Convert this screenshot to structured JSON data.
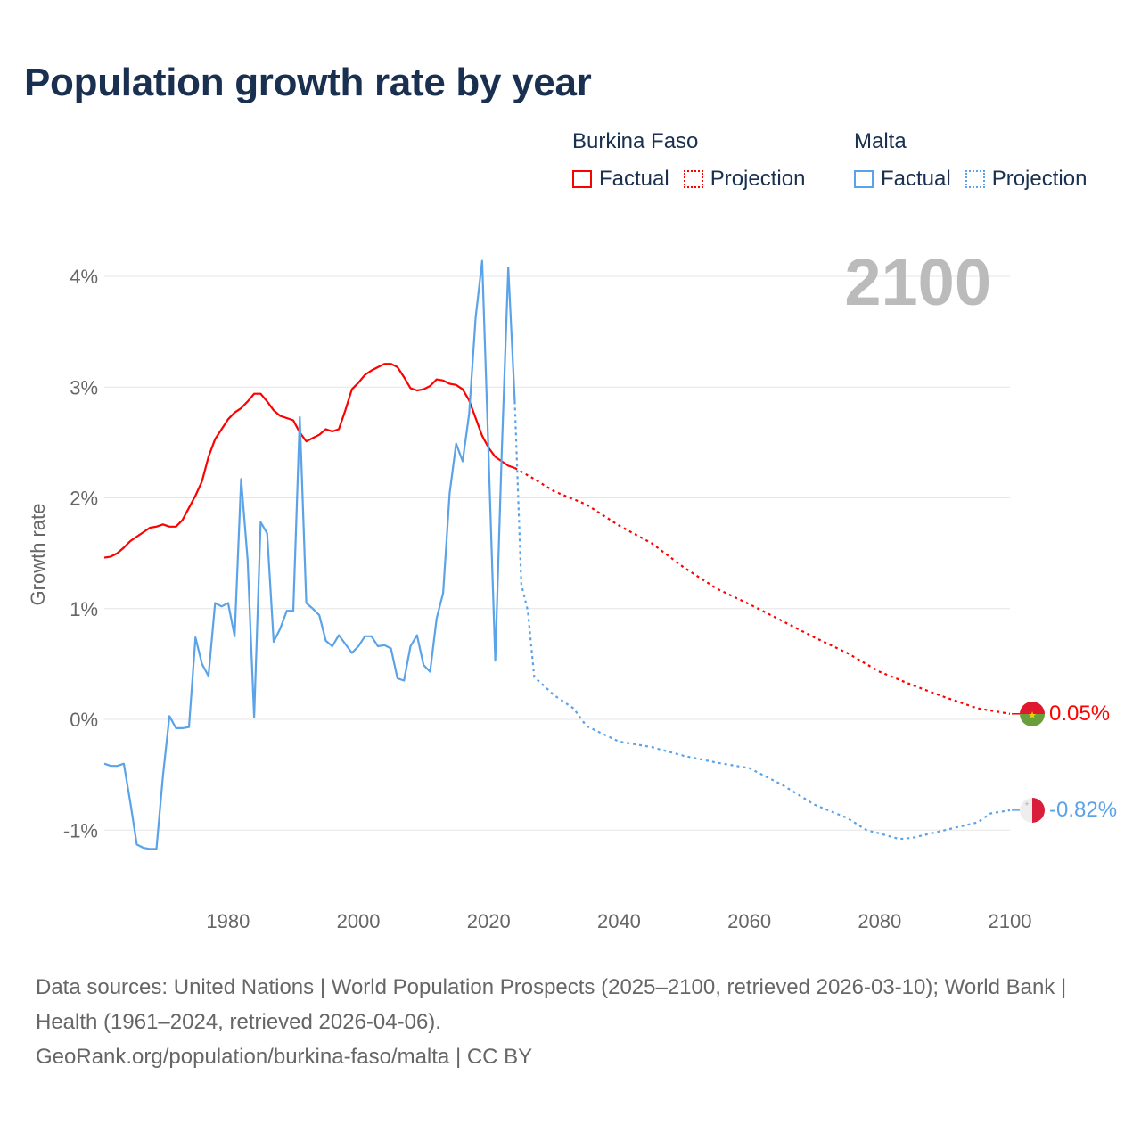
{
  "title": "Population growth rate by year",
  "legend": {
    "groups": [
      {
        "name": "Burkina Faso",
        "factual": "Factual",
        "projection": "Projection",
        "color": "#ff0000"
      },
      {
        "name": "Malta",
        "factual": "Factual",
        "projection": "Projection",
        "color": "#5ba3e8"
      }
    ]
  },
  "year_label": "2100",
  "footer": {
    "sources": "Data sources: United Nations | World Population Prospects (2025–2100, retrieved 2026-03-10); World Bank | Health (1961–2024, retrieved 2026-04-06).",
    "link": "GeoRank.org/population/burkina-faso/malta | CC BY"
  },
  "chart_data": {
    "type": "line",
    "title": "Population growth rate by year",
    "xlabel": "",
    "ylabel": "Growth rate",
    "xlim": [
      1961,
      2100
    ],
    "ylim": [
      -1.4,
      4.2
    ],
    "grid": true,
    "x_ticks": [
      1980,
      2000,
      2020,
      2040,
      2060,
      2080,
      2100
    ],
    "x_tick_labels": [
      "1980",
      "2000",
      "2020",
      "2040",
      "2060",
      "2080",
      "2100"
    ],
    "y_ticks": [
      -1,
      0,
      1,
      2,
      3,
      4
    ],
    "y_tick_labels": [
      "-1%",
      "0%",
      "1%",
      "2%",
      "3%",
      "4%"
    ],
    "legend_position": "top-right",
    "series": [
      {
        "name": "Burkina Faso",
        "color": "#ff0000",
        "end_label": "0.05%",
        "factual": {
          "x": [
            1961,
            1962,
            1963,
            1964,
            1965,
            1966,
            1967,
            1968,
            1969,
            1970,
            1971,
            1972,
            1973,
            1974,
            1975,
            1976,
            1977,
            1978,
            1979,
            1980,
            1981,
            1982,
            1983,
            1984,
            1985,
            1986,
            1987,
            1988,
            1989,
            1990,
            1991,
            1992,
            1993,
            1994,
            1995,
            1996,
            1997,
            1998,
            1999,
            2000,
            2001,
            2002,
            2003,
            2004,
            2005,
            2006,
            2007,
            2008,
            2009,
            2010,
            2011,
            2012,
            2013,
            2014,
            2015,
            2016,
            2017,
            2018,
            2019,
            2020,
            2021,
            2022,
            2023,
            2024
          ],
          "y": [
            1.46,
            1.47,
            1.5,
            1.55,
            1.61,
            1.65,
            1.69,
            1.73,
            1.74,
            1.76,
            1.74,
            1.74,
            1.8,
            1.91,
            2.02,
            2.15,
            2.37,
            2.53,
            2.62,
            2.71,
            2.77,
            2.81,
            2.87,
            2.94,
            2.94,
            2.87,
            2.79,
            2.74,
            2.72,
            2.7,
            2.59,
            2.51,
            2.54,
            2.57,
            2.62,
            2.6,
            2.62,
            2.79,
            2.98,
            3.04,
            3.11,
            3.15,
            3.18,
            3.21,
            3.21,
            3.18,
            3.09,
            2.99,
            2.97,
            2.98,
            3.01,
            3.07,
            3.06,
            3.03,
            3.02,
            2.98,
            2.88,
            2.72,
            2.56,
            2.45,
            2.37,
            2.33,
            2.29,
            2.27
          ]
        },
        "projection": {
          "x": [
            2024,
            2027,
            2030,
            2035,
            2040,
            2045,
            2050,
            2055,
            2060,
            2065,
            2070,
            2075,
            2080,
            2085,
            2090,
            2095,
            2100
          ],
          "y": [
            2.27,
            2.17,
            2.06,
            1.94,
            1.75,
            1.59,
            1.37,
            1.18,
            1.04,
            0.89,
            0.74,
            0.6,
            0.43,
            0.31,
            0.2,
            0.1,
            0.05
          ]
        }
      },
      {
        "name": "Malta",
        "color": "#5ba3e8",
        "end_label": "-0.82%",
        "factual": {
          "x": [
            1961,
            1962,
            1963,
            1964,
            1965,
            1966,
            1967,
            1968,
            1969,
            1970,
            1971,
            1972,
            1973,
            1974,
            1975,
            1976,
            1977,
            1978,
            1979,
            1980,
            1981,
            1982,
            1983,
            1984,
            1985,
            1986,
            1987,
            1988,
            1989,
            1990,
            1991,
            1992,
            1993,
            1994,
            1995,
            1996,
            1997,
            1998,
            1999,
            2000,
            2001,
            2002,
            2003,
            2004,
            2005,
            2006,
            2007,
            2008,
            2009,
            2010,
            2011,
            2012,
            2013,
            2014,
            2015,
            2016,
            2017,
            2018,
            2019,
            2020,
            2021,
            2022,
            2023,
            2024
          ],
          "y": [
            -0.4,
            -0.42,
            -0.42,
            -0.4,
            -0.75,
            -1.13,
            -1.16,
            -1.17,
            -1.17,
            -0.51,
            0.03,
            -0.08,
            -0.08,
            -0.07,
            0.74,
            0.5,
            0.39,
            1.05,
            1.02,
            1.05,
            0.75,
            2.17,
            1.44,
            0.02,
            1.78,
            1.68,
            0.7,
            0.82,
            0.98,
            0.98,
            2.73,
            1.05,
            1.0,
            0.94,
            0.71,
            0.66,
            0.76,
            0.68,
            0.6,
            0.66,
            0.75,
            0.75,
            0.66,
            0.67,
            0.64,
            0.37,
            0.35,
            0.66,
            0.76,
            0.49,
            0.43,
            0.91,
            1.14,
            2.04,
            2.49,
            2.33,
            2.76,
            3.63,
            4.14,
            2.34,
            0.53,
            2.42,
            4.08,
            2.87
          ]
        },
        "projection": {
          "x": [
            2024,
            2025,
            2026,
            2027,
            2028,
            2030,
            2033,
            2035,
            2040,
            2045,
            2050,
            2055,
            2060,
            2065,
            2070,
            2075,
            2078,
            2080,
            2083,
            2085,
            2090,
            2095,
            2097,
            2100
          ],
          "y": [
            2.87,
            1.22,
            0.98,
            0.38,
            0.33,
            0.22,
            0.1,
            -0.06,
            -0.2,
            -0.25,
            -0.33,
            -0.39,
            -0.44,
            -0.59,
            -0.77,
            -0.89,
            -1.0,
            -1.03,
            -1.08,
            -1.07,
            -1.0,
            -0.93,
            -0.85,
            -0.82
          ]
        }
      }
    ]
  }
}
